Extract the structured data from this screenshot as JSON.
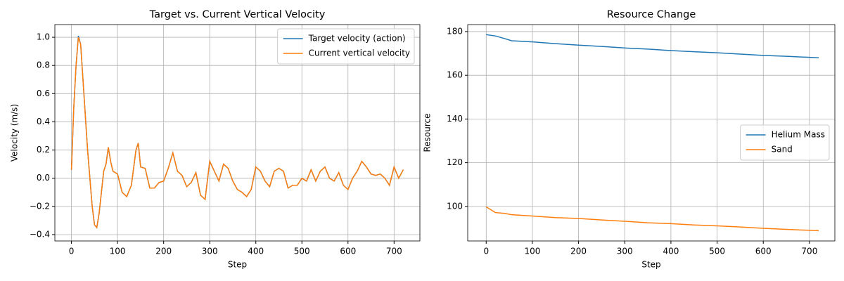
{
  "chart_data": [
    {
      "type": "line",
      "title": "Target vs. Current Vertical Velocity",
      "x_label": "Step",
      "y_label": "Velocity (m/s)",
      "x": [
        0,
        5,
        10,
        15,
        20,
        25,
        30,
        35,
        40,
        45,
        50,
        55,
        60,
        65,
        70,
        75,
        80,
        85,
        90,
        100,
        110,
        120,
        130,
        140,
        145,
        150,
        160,
        170,
        180,
        190,
        200,
        210,
        220,
        230,
        240,
        250,
        260,
        270,
        280,
        290,
        300,
        310,
        320,
        330,
        340,
        350,
        360,
        370,
        380,
        390,
        400,
        410,
        420,
        430,
        440,
        450,
        460,
        470,
        480,
        490,
        500,
        510,
        520,
        530,
        540,
        550,
        560,
        570,
        580,
        590,
        600,
        610,
        620,
        630,
        640,
        650,
        660,
        670,
        680,
        690,
        700,
        710,
        720
      ],
      "series": [
        {
          "name": "Target velocity (action)",
          "color": "#1f77b4",
          "values": [
            0.06,
            0.5,
            0.8,
            1.01,
            0.95,
            0.7,
            0.45,
            0.2,
            0.0,
            -0.2,
            -0.33,
            -0.35,
            -0.25,
            -0.1,
            0.05,
            0.1,
            0.22,
            0.12,
            0.05,
            0.03,
            -0.1,
            -0.13,
            -0.05,
            0.2,
            0.25,
            0.08,
            0.07,
            -0.07,
            -0.07,
            -0.03,
            -0.02,
            0.07,
            0.18,
            0.05,
            0.02,
            -0.06,
            -0.03,
            0.04,
            -0.12,
            -0.15,
            0.12,
            0.05,
            -0.02,
            0.1,
            0.07,
            -0.02,
            -0.08,
            -0.1,
            -0.13,
            -0.08,
            0.08,
            0.05,
            -0.02,
            -0.06,
            0.05,
            0.07,
            0.05,
            -0.07,
            -0.05,
            -0.05,
            0.0,
            -0.02,
            0.06,
            -0.02,
            0.05,
            0.08,
            0.0,
            -0.02,
            0.04,
            -0.05,
            -0.08,
            0.0,
            0.05,
            0.12,
            0.08,
            0.03,
            0.02,
            0.03,
            0.0,
            -0.05,
            0.08,
            0.0,
            0.06
          ]
        },
        {
          "name": "Current vertical velocity",
          "color": "#ff7f0e",
          "values": [
            0.06,
            0.5,
            0.8,
            1.0,
            0.95,
            0.7,
            0.45,
            0.2,
            0.0,
            -0.2,
            -0.33,
            -0.35,
            -0.25,
            -0.1,
            0.05,
            0.1,
            0.22,
            0.12,
            0.05,
            0.03,
            -0.1,
            -0.13,
            -0.05,
            0.2,
            0.25,
            0.08,
            0.07,
            -0.07,
            -0.07,
            -0.03,
            -0.02,
            0.07,
            0.18,
            0.05,
            0.02,
            -0.06,
            -0.03,
            0.04,
            -0.12,
            -0.15,
            0.12,
            0.05,
            -0.02,
            0.1,
            0.07,
            -0.02,
            -0.08,
            -0.1,
            -0.13,
            -0.08,
            0.08,
            0.05,
            -0.02,
            -0.06,
            0.05,
            0.07,
            0.05,
            -0.07,
            -0.05,
            -0.05,
            0.0,
            -0.02,
            0.06,
            -0.02,
            0.05,
            0.08,
            0.0,
            -0.02,
            0.04,
            -0.05,
            -0.08,
            0.0,
            0.05,
            0.12,
            0.08,
            0.03,
            0.02,
            0.03,
            0.0,
            -0.05,
            0.08,
            0.0,
            0.06
          ]
        }
      ],
      "xlim": [
        -36,
        756
      ],
      "ylim": [
        -0.445,
        1.09
      ],
      "xticks": [
        0,
        100,
        200,
        300,
        400,
        500,
        600,
        700
      ],
      "yticks": [
        {
          "value": -0.4,
          "label": "−0.4"
        },
        {
          "value": -0.2,
          "label": "−0.2"
        },
        {
          "value": 0,
          "label": "0.0"
        },
        {
          "value": 0.2,
          "label": "0.2"
        },
        {
          "value": 0.4,
          "label": "0.4"
        },
        {
          "value": 0.6,
          "label": "0.6"
        },
        {
          "value": 0.8,
          "label": "0.8"
        },
        {
          "value": 1,
          "label": "1.0"
        }
      ],
      "grid": true,
      "legend": "upper-right"
    },
    {
      "type": "line",
      "title": "Resource Change",
      "x_label": "Step",
      "y_label": "Resource",
      "x": [
        0,
        20,
        40,
        55,
        100,
        150,
        200,
        250,
        300,
        350,
        400,
        450,
        500,
        550,
        600,
        650,
        720
      ],
      "series": [
        {
          "name": "Helium Mass",
          "color": "#1f77b4",
          "values": [
            178.6,
            178,
            176.8,
            175.8,
            175.3,
            174.5,
            173.8,
            173.2,
            172.5,
            172,
            171.3,
            170.8,
            170.3,
            169.7,
            169.1,
            168.7,
            168
          ]
        },
        {
          "name": "Sand",
          "color": "#ff7f0e",
          "values": [
            99.8,
            97.2,
            96.8,
            96.2,
            95.6,
            94.9,
            94.5,
            93.8,
            93.2,
            92.5,
            92.1,
            91.5,
            91.1,
            90.6,
            90,
            89.5,
            88.9
          ]
        }
      ],
      "xlim": [
        -40,
        755
      ],
      "ylim": [
        84.2,
        183.2
      ],
      "xticks": [
        0,
        100,
        200,
        300,
        400,
        500,
        600,
        700
      ],
      "yticks": [
        100,
        120,
        140,
        160,
        180
      ],
      "grid": true,
      "legend": "center-right"
    }
  ]
}
